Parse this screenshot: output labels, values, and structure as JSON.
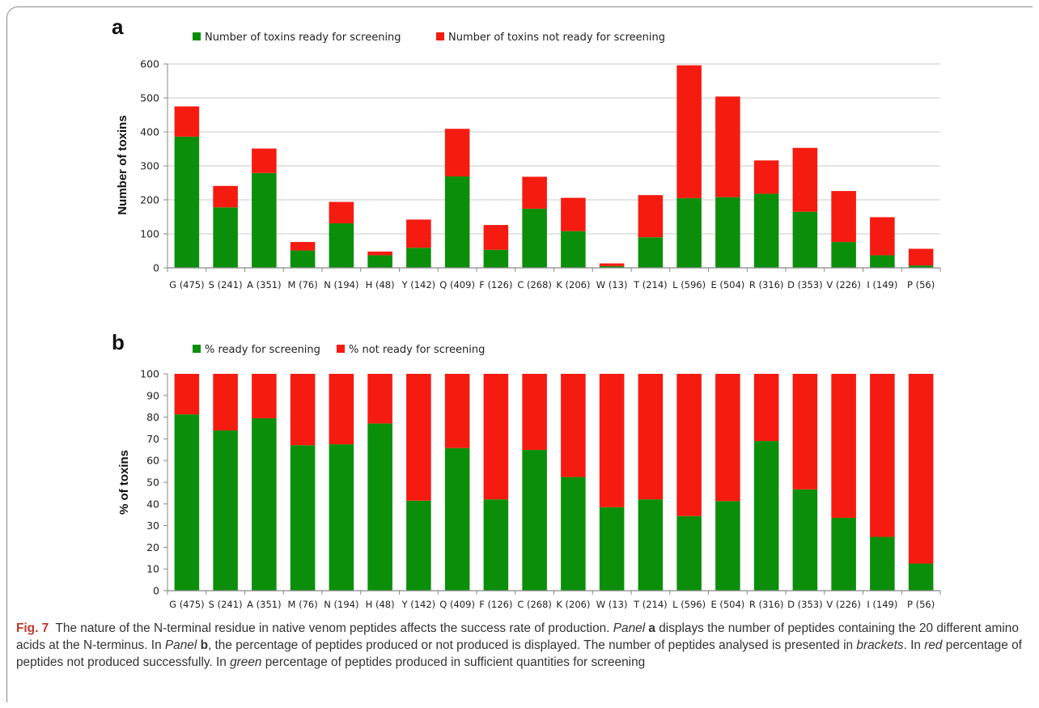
{
  "panels": [
    {
      "letter": "a",
      "legend": [
        "Number of toxins ready for screening",
        "Number of toxins not ready for screening"
      ]
    },
    {
      "letter": "b",
      "legend": [
        "% ready for screening",
        "% not ready for screening"
      ]
    }
  ],
  "colors": {
    "ready": "#0b8f0b",
    "not_ready": "#f51b10"
  },
  "caption": {
    "fig_label": "Fig. 7",
    "t1": "The nature of the N-terminal residue in native venom peptides affects the success rate of production.",
    "panel_word_1": "Panel",
    "panel_letter_1": "a",
    "t2": "displays the number of peptides containing the 20 different amino acids at the N-terminus. In",
    "panel_word_2": "Panel",
    "panel_letter_2": "b",
    "t3": ", the percentage of peptides produced or not produced is displayed. The number of peptides analysed is presented in",
    "brackets": "brackets",
    "t4": ". In",
    "red": "red",
    "t5": "percentage of peptides not produced successfully. In",
    "green": "green",
    "t6": "percentage of peptides produced in sufficient quantities for screening"
  },
  "chart_data": [
    {
      "type": "bar",
      "stacked": true,
      "categories": [
        "G (475)",
        "S (241)",
        "A (351)",
        "M (76)",
        "N (194)",
        "H (48)",
        "Y (142)",
        "Q (409)",
        "F (126)",
        "C (268)",
        "K (206)",
        "W (13)",
        "T (214)",
        "L (596)",
        "E (504)",
        "R (316)",
        "D (353)",
        "V (226)",
        "I (149)",
        "P (56)"
      ],
      "series": [
        {
          "name": "Number of toxins ready for screening",
          "values": [
            386,
            178,
            279,
            51,
            131,
            37,
            59,
            269,
            53,
            174,
            108,
            5,
            90,
            205,
            208,
            218,
            165,
            76,
            37,
            7
          ]
        },
        {
          "name": "Number of toxins not ready for screening",
          "values": [
            89,
            63,
            72,
            25,
            63,
            11,
            83,
            140,
            73,
            94,
            98,
            8,
            124,
            391,
            296,
            98,
            188,
            150,
            112,
            49
          ]
        }
      ],
      "ylabel": "Number of toxins",
      "ylim": [
        0,
        600
      ],
      "yticks": [
        "0",
        "100",
        "200",
        "300",
        "400",
        "500",
        "600"
      ],
      "grid": true,
      "legend_position": "top"
    },
    {
      "type": "bar",
      "stacked": true,
      "categories": [
        "G (475)",
        "S (241)",
        "A (351)",
        "M (76)",
        "N (194)",
        "H (48)",
        "Y (142)",
        "Q (409)",
        "F (126)",
        "C (268)",
        "K (206)",
        "W (13)",
        "T (214)",
        "L (596)",
        "E (504)",
        "R (316)",
        "D (353)",
        "V (226)",
        "I (149)",
        "P (56)"
      ],
      "series": [
        {
          "name": "% ready for screening",
          "values": [
            81.3,
            73.9,
            79.5,
            67.1,
            67.5,
            77.1,
            41.5,
            65.8,
            42.1,
            64.9,
            52.4,
            38.5,
            42.1,
            34.4,
            41.3,
            69.0,
            46.7,
            33.6,
            24.8,
            12.5
          ]
        },
        {
          "name": "% not ready for screening",
          "values": [
            18.7,
            26.1,
            20.5,
            32.9,
            32.5,
            22.9,
            58.5,
            34.2,
            57.9,
            35.1,
            47.6,
            61.5,
            57.9,
            65.6,
            58.7,
            31.0,
            53.3,
            66.4,
            75.2,
            87.5
          ]
        }
      ],
      "ylabel": "% of toxins",
      "ylim": [
        0,
        100
      ],
      "yticks": [
        "0",
        "10",
        "20",
        "30",
        "40",
        "50",
        "60",
        "70",
        "80",
        "90",
        "100"
      ],
      "grid": false,
      "legend_position": "top"
    }
  ]
}
